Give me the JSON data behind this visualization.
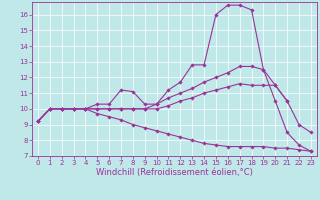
{
  "xlabel": "Windchill (Refroidissement éolien,°C)",
  "background_color": "#c0e8e8",
  "grid_color": "#ffffff",
  "line_color": "#993399",
  "xlim": [
    -0.5,
    23.5
  ],
  "ylim": [
    7.0,
    16.8
  ],
  "xticks": [
    0,
    1,
    2,
    3,
    4,
    5,
    6,
    7,
    8,
    9,
    10,
    11,
    12,
    13,
    14,
    15,
    16,
    17,
    18,
    19,
    20,
    21,
    22,
    23
  ],
  "yticks": [
    7,
    8,
    9,
    10,
    11,
    12,
    13,
    14,
    15,
    16
  ],
  "tick_font_size": 5.0,
  "label_font_size": 6.0,
  "line1_x": [
    0,
    1,
    2,
    3,
    4,
    5,
    6,
    7,
    8,
    9,
    10,
    11,
    12,
    13,
    14,
    15,
    16,
    17,
    18,
    19,
    20,
    21
  ],
  "line1_y": [
    9.2,
    10.0,
    10.0,
    10.0,
    10.0,
    10.3,
    10.3,
    11.2,
    11.1,
    10.3,
    10.3,
    11.2,
    11.7,
    12.8,
    12.8,
    16.0,
    16.6,
    16.6,
    16.3,
    12.5,
    11.5,
    10.5
  ],
  "line2_x": [
    0,
    1,
    2,
    3,
    4,
    5,
    6,
    7,
    8,
    9,
    10,
    11,
    12,
    13,
    14,
    15,
    16,
    17,
    18,
    19,
    20,
    21,
    22,
    23
  ],
  "line2_y": [
    9.2,
    10.0,
    10.0,
    10.0,
    10.0,
    10.0,
    10.0,
    10.0,
    10.0,
    10.0,
    10.3,
    10.7,
    11.0,
    11.3,
    11.7,
    12.0,
    12.3,
    12.7,
    12.7,
    12.5,
    10.5,
    8.5,
    7.7,
    7.3
  ],
  "line3_x": [
    0,
    1,
    2,
    3,
    4,
    5,
    6,
    7,
    8,
    9,
    10,
    11,
    12,
    13,
    14,
    15,
    16,
    17,
    18,
    19,
    20,
    21,
    22,
    23
  ],
  "line3_y": [
    9.2,
    10.0,
    10.0,
    10.0,
    10.0,
    10.0,
    10.0,
    10.0,
    10.0,
    10.0,
    10.0,
    10.2,
    10.5,
    10.7,
    11.0,
    11.2,
    11.4,
    11.6,
    11.5,
    11.5,
    11.5,
    10.5,
    9.0,
    8.5
  ],
  "line4_x": [
    0,
    1,
    2,
    3,
    4,
    5,
    6,
    7,
    8,
    9,
    10,
    11,
    12,
    13,
    14,
    15,
    16,
    17,
    18,
    19,
    20,
    21,
    22,
    23
  ],
  "line4_y": [
    9.2,
    10.0,
    10.0,
    10.0,
    10.0,
    9.7,
    9.5,
    9.3,
    9.0,
    8.8,
    8.6,
    8.4,
    8.2,
    8.0,
    7.8,
    7.7,
    7.6,
    7.6,
    7.6,
    7.6,
    7.5,
    7.5,
    7.4,
    7.3
  ]
}
